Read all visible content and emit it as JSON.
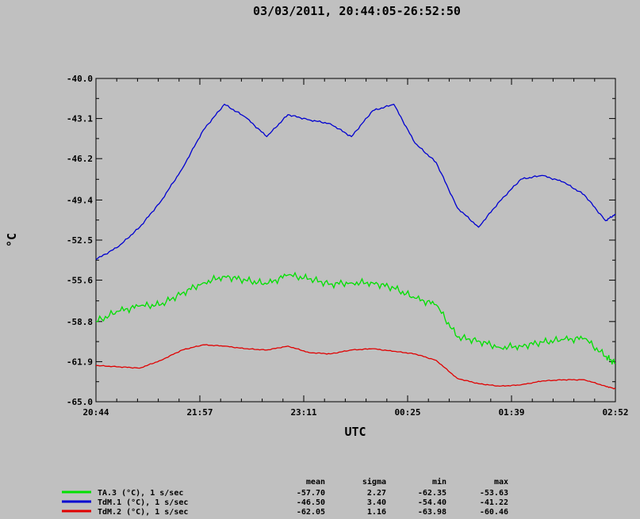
{
  "chart_data": {
    "type": "line",
    "title": "03/03/2011, 20:44:05-26:52:50",
    "xlabel": "UTC",
    "ylabel": "°C",
    "ylim": [
      -65.0,
      -40.0
    ],
    "xlim": [
      "20:44",
      "02:52"
    ],
    "x_ticks": [
      "20:44",
      "21:57",
      "23:11",
      "00:25",
      "01:39",
      "02:52"
    ],
    "y_ticks": [
      "-40.0",
      "-43.1",
      "-46.2",
      "-49.4",
      "-52.5",
      "-55.6",
      "-58.8",
      "-61.9",
      "-65.0"
    ],
    "x": [
      "20:44",
      "21:00",
      "21:15",
      "21:30",
      "21:45",
      "22:00",
      "22:15",
      "22:30",
      "22:45",
      "23:00",
      "23:15",
      "23:30",
      "23:45",
      "00:00",
      "00:15",
      "00:30",
      "00:45",
      "01:00",
      "01:15",
      "01:30",
      "01:45",
      "02:00",
      "02:15",
      "02:30",
      "02:45",
      "02:52"
    ],
    "series": [
      {
        "name": "TA.3 (°C), 1 s/sec",
        "color": "#00e000",
        "values": [
          -58.8,
          -58.0,
          -57.6,
          -57.5,
          -56.6,
          -55.8,
          -55.3,
          -55.6,
          -55.9,
          -55.2,
          -55.5,
          -55.9,
          -55.8,
          -55.8,
          -56.2,
          -57.0,
          -57.5,
          -60.0,
          -60.3,
          -60.8,
          -60.7,
          -60.4,
          -60.2,
          -60.1,
          -61.5,
          -62.0
        ]
      },
      {
        "name": "TdM.1 (°C), 1 s/sec",
        "color": "#0000d0",
        "values": [
          -54.0,
          -53.0,
          -51.5,
          -49.5,
          -47.0,
          -44.0,
          -42.0,
          -43.0,
          -44.5,
          -42.8,
          -43.2,
          -43.5,
          -44.5,
          -42.5,
          -42.0,
          -45.0,
          -46.5,
          -50.0,
          -51.5,
          -49.5,
          -47.8,
          -47.5,
          -48.0,
          -49.0,
          -51.0,
          -50.5
        ]
      },
      {
        "name": "TdM.2 (°C), 1 s/sec",
        "color": "#e00000",
        "values": [
          -62.2,
          -62.3,
          -62.4,
          -61.8,
          -61.0,
          -60.6,
          -60.7,
          -60.9,
          -61.0,
          -60.7,
          -61.2,
          -61.3,
          -61.0,
          -60.9,
          -61.1,
          -61.3,
          -61.8,
          -63.2,
          -63.6,
          -63.8,
          -63.7,
          -63.4,
          -63.3,
          -63.3,
          -63.8,
          -64.0
        ]
      }
    ],
    "stats": {
      "headers": [
        "mean",
        "sigma",
        "min",
        "max"
      ],
      "rows": [
        [
          "-57.70",
          "2.27",
          "-62.35",
          "-53.63"
        ],
        [
          "-46.50",
          "3.40",
          "-54.40",
          "-41.22"
        ],
        [
          "-62.05",
          "1.16",
          "-63.98",
          "-60.46"
        ]
      ]
    },
    "grid": false,
    "legend_position": "bottom-left",
    "background_color": "#c0c0c0",
    "plot_background_color": "#c0c0c0"
  }
}
